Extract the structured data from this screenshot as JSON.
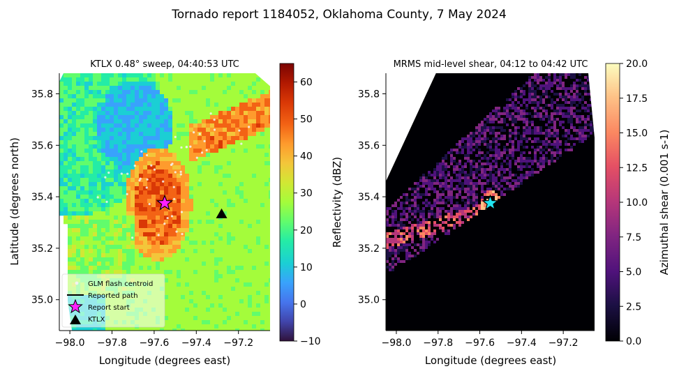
{
  "figure": {
    "title": "Tornado report 1184052, Oklahoma County, 7 May 2024"
  },
  "panels": [
    {
      "title": "KTLX 0.48° sweep, 04:40:53 UTC",
      "xlabel": "Longitude (degrees east)",
      "ylabel": "Latitude (degrees north)",
      "colorbar": {
        "label": "Reflectivity (dBZ)",
        "range": [
          -10,
          65
        ],
        "ticks": [
          "−10",
          "0",
          "10",
          "20",
          "30",
          "40",
          "50",
          "60"
        ],
        "tick_values": [
          -10,
          0,
          10,
          20,
          30,
          40,
          50,
          60
        ],
        "colormap": "turbo"
      },
      "legend": {
        "placement": "lower-left",
        "entries": [
          {
            "label": "GLM flash centroid",
            "marker": "dot",
            "color": "#f2f2f2"
          },
          {
            "label": "Reported path",
            "marker": "line",
            "color": "#000000"
          },
          {
            "label": "Report start",
            "marker": "star",
            "color": "#ff1fff"
          },
          {
            "label": "KTLX",
            "marker": "triangle",
            "color": "#000000"
          }
        ]
      }
    },
    {
      "title": "MRMS mid-level shear, 04:12 to 04:42 UTC",
      "xlabel": "Longitude (degrees east)",
      "ylabel": "",
      "colorbar": {
        "label": "Azimuthal shear (0.001 s-1)",
        "range": [
          0,
          20
        ],
        "ticks": [
          "0.0",
          "2.5",
          "5.0",
          "7.5",
          "10.0",
          "12.5",
          "15.0",
          "17.5",
          "20.0"
        ],
        "tick_values": [
          0,
          2.5,
          5,
          7.5,
          10,
          12.5,
          15,
          17.5,
          20
        ],
        "colormap": "magma"
      }
    }
  ],
  "chart_data": [
    {
      "type": "heatmap",
      "title": "KTLX 0.48° sweep, 04:40:53 UTC",
      "xlabel": "Longitude (degrees east)",
      "ylabel": "Latitude (degrees north)",
      "xlim": [
        -98.05,
        -97.05
      ],
      "ylim": [
        34.88,
        35.88
      ],
      "xticks": [
        -98.0,
        -97.8,
        -97.6,
        -97.4,
        -97.2
      ],
      "xtick_labels": [
        "−98.0",
        "−97.8",
        "−97.6",
        "−97.4",
        "−97.2"
      ],
      "yticks": [
        35.0,
        35.2,
        35.4,
        35.6,
        35.8
      ],
      "ytick_labels": [
        "35.0",
        "35.2",
        "35.4",
        "35.6",
        "35.8"
      ],
      "value_range": [
        -10,
        65
      ],
      "report_start": {
        "lon": -97.55,
        "lat": 35.375
      },
      "ktlx": {
        "lon": -97.28,
        "lat": 35.333
      }
    },
    {
      "type": "heatmap",
      "title": "MRMS mid-level shear, 04:12 to 04:42 UTC",
      "xlabel": "Longitude (degrees east)",
      "xlim": [
        -98.05,
        -97.05
      ],
      "ylim": [
        34.88,
        35.88
      ],
      "xticks": [
        -98.0,
        -97.8,
        -97.6,
        -97.4,
        -97.2
      ],
      "xtick_labels": [
        "−98.0",
        "−97.8",
        "−97.6",
        "−97.4",
        "−97.2"
      ],
      "yticks": [
        35.0,
        35.2,
        35.4,
        35.6,
        35.8
      ],
      "ytick_labels": [
        "35.0",
        "35.2",
        "35.4",
        "35.6",
        "35.8"
      ],
      "value_range": [
        0,
        20
      ],
      "report_start": {
        "lon": -97.55,
        "lat": 35.375
      }
    }
  ]
}
